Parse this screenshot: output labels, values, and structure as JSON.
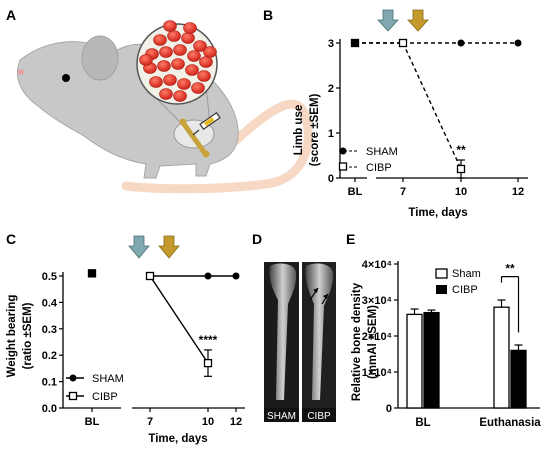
{
  "panel_labels": [
    "A",
    "B",
    "C",
    "D",
    "E"
  ],
  "colors": {
    "arrow_blue": "#7fa8b0",
    "arrow_gold": "#c49a2c",
    "mouse_body": "#c8c8c8",
    "mouse_tail": "#f6d8c4",
    "cells": "#e8362b",
    "sham_fill": "#000000",
    "cibp_fill": "#ffffff"
  },
  "chart_data": [
    {
      "id": "B",
      "type": "line",
      "ylabel": [
        "Limb use",
        "(score ±SEM)"
      ],
      "xlabel": "Time, days",
      "categories": [
        "BL",
        "7",
        "10",
        "12"
      ],
      "ylim": [
        0,
        3
      ],
      "yticks": [
        "0",
        "1",
        "2",
        "3"
      ],
      "series": [
        {
          "name": "SHAM",
          "marker": "circle",
          "style": "dashed",
          "values": [
            3,
            3,
            3,
            3
          ]
        },
        {
          "name": "CIBP",
          "marker": "square-open",
          "style": "dashed",
          "values": [
            3,
            3,
            0.2,
            null
          ],
          "errors": [
            0,
            0,
            0.2,
            null
          ]
        }
      ],
      "annotations": [
        {
          "text": "**",
          "at": "10"
        }
      ],
      "legend": "bottom-left"
    },
    {
      "id": "C",
      "type": "line",
      "ylabel": [
        "Weight bearing",
        "(ratio ±SEM)"
      ],
      "xlabel": "Time, days",
      "categories": [
        "BL",
        "7",
        "10",
        "12"
      ],
      "ylim": [
        0,
        0.5
      ],
      "yticks": [
        "0.0",
        "0.1",
        "0.2",
        "0.3",
        "0.4",
        "0.5"
      ],
      "series": [
        {
          "name": "SHAM",
          "marker": "circle",
          "style": "solid",
          "values": [
            0.51,
            0.5,
            0.5,
            0.5
          ]
        },
        {
          "name": "CIBP",
          "marker": "square-open",
          "style": "solid",
          "values": [
            0.51,
            0.5,
            0.17,
            null
          ],
          "errors": [
            0,
            0,
            0.05,
            null
          ]
        }
      ],
      "annotations": [
        {
          "text": "****",
          "at": "10"
        }
      ],
      "legend": "bottom-left"
    },
    {
      "id": "E",
      "type": "bar",
      "ylabel": [
        "Relative bone density",
        "(mmAl ±SEM)"
      ],
      "categories": [
        "BL",
        "Euthanasia"
      ],
      "ylim": [
        0,
        40000
      ],
      "yticks": [
        "0",
        "1×10⁴",
        "2×10⁴",
        "3×10⁴",
        "4×10⁴"
      ],
      "series": [
        {
          "name": "Sham",
          "fill": "#ffffff",
          "values": [
            26000,
            28000
          ],
          "errors": [
            1500,
            2000
          ]
        },
        {
          "name": "CIBP",
          "fill": "#000000",
          "values": [
            26500,
            16000
          ],
          "errors": [
            700,
            1500
          ]
        }
      ],
      "annotations": [
        {
          "text": "**",
          "at": "Euthanasia"
        }
      ],
      "legend": "top-left"
    }
  ],
  "xray": {
    "labels": [
      "SHAM",
      "CIBP"
    ]
  }
}
